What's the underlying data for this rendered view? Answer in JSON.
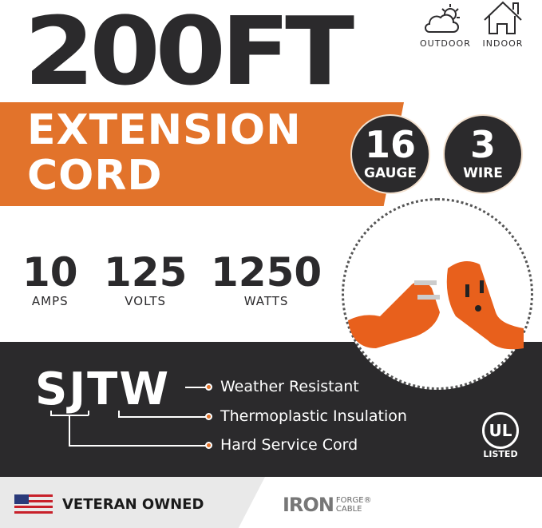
{
  "header": {
    "title": "200FT",
    "subtitle_line1": "EXTENSION",
    "subtitle_line2": "CORD"
  },
  "usage_icons": [
    {
      "icon": "cloud-sun-icon",
      "label": "OUTDOOR"
    },
    {
      "icon": "house-icon",
      "label": "INDOOR"
    }
  ],
  "badges": [
    {
      "value": "16",
      "label": "GAUGE"
    },
    {
      "value": "3",
      "label": "WIRE"
    }
  ],
  "specs": [
    {
      "value": "10",
      "label": "AMPS"
    },
    {
      "value": "125",
      "label": "VOLTS"
    },
    {
      "value": "1250",
      "label": "WATTS"
    }
  ],
  "rating": {
    "code": "SJTW",
    "features": [
      "Weather Resistant",
      "Thermoplastic Insulation",
      "Hard Service Cord"
    ]
  },
  "certification": {
    "logo": "UL",
    "label": "LISTED"
  },
  "footer": {
    "veteran": "VETERAN OWNED",
    "brand": "IRON",
    "brand_sub1": "FORGE",
    "brand_sub2": "CABLE"
  },
  "colors": {
    "accent": "#e2732b",
    "dark": "#2b2a2c"
  }
}
